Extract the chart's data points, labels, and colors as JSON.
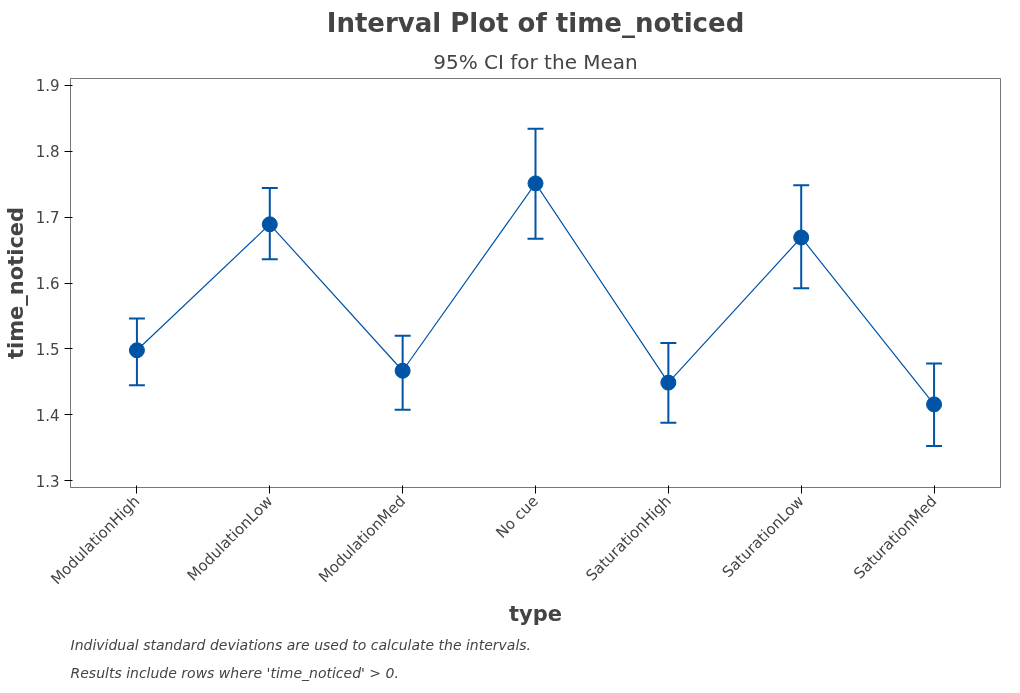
{
  "chart_data": {
    "type": "line",
    "title": "Interval Plot of time_noticed",
    "subtitle": "95% CI for the Mean",
    "xlabel": "type",
    "ylabel": "time_noticed",
    "categories": [
      "ModulationHigh",
      "ModulationLow",
      "ModulationMed",
      "No cue",
      "SaturationHigh",
      "SaturationLow",
      "SaturationMed"
    ],
    "series": [
      {
        "color": "#0054a6",
        "values": [
          1.498,
          1.689,
          1.467,
          1.751,
          1.449,
          1.669,
          1.416
        ],
        "errors": [
          [
            1.445,
            1.546
          ],
          [
            1.636,
            1.744
          ],
          [
            1.408,
            1.52
          ],
          [
            1.667,
            1.834
          ],
          [
            1.388,
            1.509
          ],
          [
            1.592,
            1.748
          ],
          [
            1.353,
            1.478
          ]
        ]
      }
    ],
    "ylim": [
      1.29,
      1.91
    ],
    "yticks": [
      1.3,
      1.4,
      1.5,
      1.6,
      1.7,
      1.8,
      1.9
    ],
    "grid": false,
    "marker": "circle",
    "line_style": "solid",
    "annotations": [
      "Individual standard deviations are used to calculate the intervals.",
      "Results include rows where 'time_noticed' > 0."
    ]
  }
}
